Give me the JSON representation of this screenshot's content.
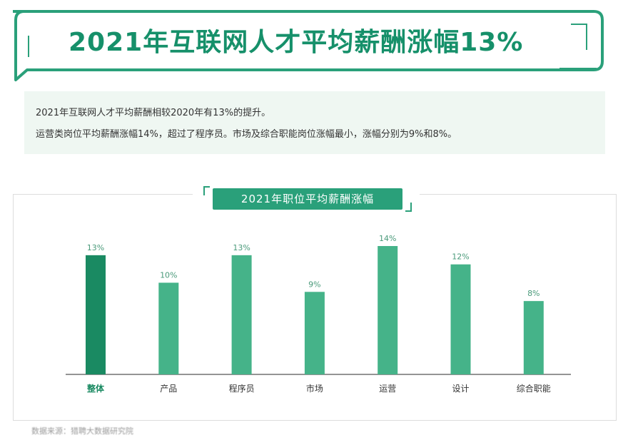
{
  "title": "2021年互联网人才平均薪酬涨幅13%",
  "summary": {
    "line1": "2021年互联网人才平均薪酬相较2020年有13%的提升。",
    "line2": "运营类岗位平均薪酬涨幅14%，超过了程序员。市场及综合职能岗位涨幅最小，涨幅分别为9%和8%。"
  },
  "chart_data": {
    "type": "bar",
    "title": "2021年职位平均薪酬涨幅",
    "categories": [
      "整体",
      "产品",
      "程序员",
      "市场",
      "运营",
      "设计",
      "综合职能"
    ],
    "values": [
      13,
      10,
      13,
      9,
      14,
      12,
      8
    ],
    "value_labels": [
      "13%",
      "10%",
      "13%",
      "9%",
      "14%",
      "12%",
      "8%"
    ],
    "unit": "%",
    "ylim": [
      0,
      14
    ],
    "grid": false,
    "colors": {
      "highlight_bar": "#1a8a62",
      "bar": "#45b389",
      "highlight_label": "#1a8a62",
      "label": "#333333",
      "value_label": "#4a9a7a"
    },
    "highlight_index": 0
  },
  "footnote": "数据来源：猎聘大数据研究院",
  "colors": {
    "brand": "#16906a",
    "summary_bg": "#eff7f2"
  }
}
